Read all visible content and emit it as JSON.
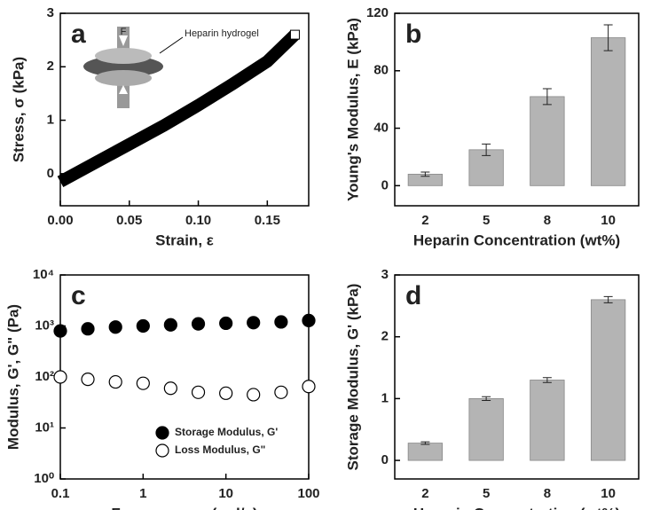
{
  "chart_data": [
    {
      "type": "line",
      "panel_label": "a",
      "x_label": "Strain, ε",
      "y_label": "Stress, σ (kPa)",
      "annotation": "Heparin hydrogel",
      "inset_label": "F",
      "series": [
        {
          "x": [
            0,
            0.025,
            0.05,
            0.075,
            0.1,
            0.125,
            0.15,
            0.17
          ],
          "values": [
            -0.15,
            0.2,
            0.55,
            0.9,
            1.28,
            1.68,
            2.1,
            2.6
          ],
          "color": "#000000"
        }
      ],
      "xlim": [
        0,
        0.18
      ],
      "xticks": [
        {
          "value": 0,
          "label": "0.00"
        },
        {
          "value": 0.05,
          "label": "0.05"
        },
        {
          "value": 0.1,
          "label": "0.10"
        },
        {
          "value": 0.15,
          "label": "0.15"
        }
      ],
      "ylim": [
        -0.6,
        3
      ],
      "yticks": [
        0,
        1,
        2,
        3
      ]
    },
    {
      "type": "bar",
      "panel_label": "b",
      "x_label": "Heparin Concentration (wt%)",
      "y_label": "Young's Modulus, E (kPa)",
      "categories": [
        "2",
        "5",
        "8",
        "10"
      ],
      "values": [
        8,
        25,
        62,
        103
      ],
      "errors": [
        1.5,
        4,
        5.5,
        9
      ],
      "color": "#b4b4b4",
      "ylim": [
        -14,
        120
      ],
      "yticks": [
        0,
        40,
        80,
        120
      ]
    },
    {
      "type": "scatter",
      "panel_label": "c",
      "x_label": "Frequency, ω (rad/s)",
      "y_label": "Modulus, G', G\" (Pa)",
      "log_x": true,
      "log_y": true,
      "legend": "lower center",
      "series": [
        {
          "name": "Storage Modulus, G'",
          "color": "#000000",
          "filled": true,
          "x": [
            0.1,
            0.215,
            0.464,
            1,
            2.15,
            4.64,
            10,
            21.5,
            46.4,
            100
          ],
          "values": [
            800,
            880,
            950,
            1000,
            1050,
            1100,
            1130,
            1160,
            1200,
            1280
          ]
        },
        {
          "name": "Loss Modulus, G\"",
          "color": "#000000",
          "filled": false,
          "x": [
            0.1,
            0.215,
            0.464,
            1,
            2.15,
            4.64,
            10,
            21.5,
            46.4,
            100
          ],
          "values": [
            100,
            90,
            80,
            75,
            60,
            50,
            48,
            45,
            50,
            65
          ]
        }
      ],
      "xlim": [
        0.1,
        100
      ],
      "xticks": [
        0.1,
        1,
        10,
        100
      ],
      "ylim": [
        1,
        10000
      ],
      "yticks": [
        {
          "value": 1,
          "label": "10⁰"
        },
        {
          "value": 10,
          "label": "10¹"
        },
        {
          "value": 100,
          "label": "10²"
        },
        {
          "value": 1000,
          "label": "10³"
        },
        {
          "value": 10000,
          "label": "10⁴"
        }
      ]
    },
    {
      "type": "bar",
      "panel_label": "d",
      "x_label": "Heparin Concentration (wt%)",
      "y_label": "Storage Modulus, G' (kPa)",
      "categories": [
        "2",
        "5",
        "8",
        "10"
      ],
      "values": [
        0.28,
        1.0,
        1.3,
        2.6
      ],
      "errors": [
        0.02,
        0.03,
        0.04,
        0.05
      ],
      "color": "#b4b4b4",
      "ylim": [
        -0.3,
        3
      ],
      "yticks": [
        0,
        1,
        2,
        3
      ]
    }
  ]
}
